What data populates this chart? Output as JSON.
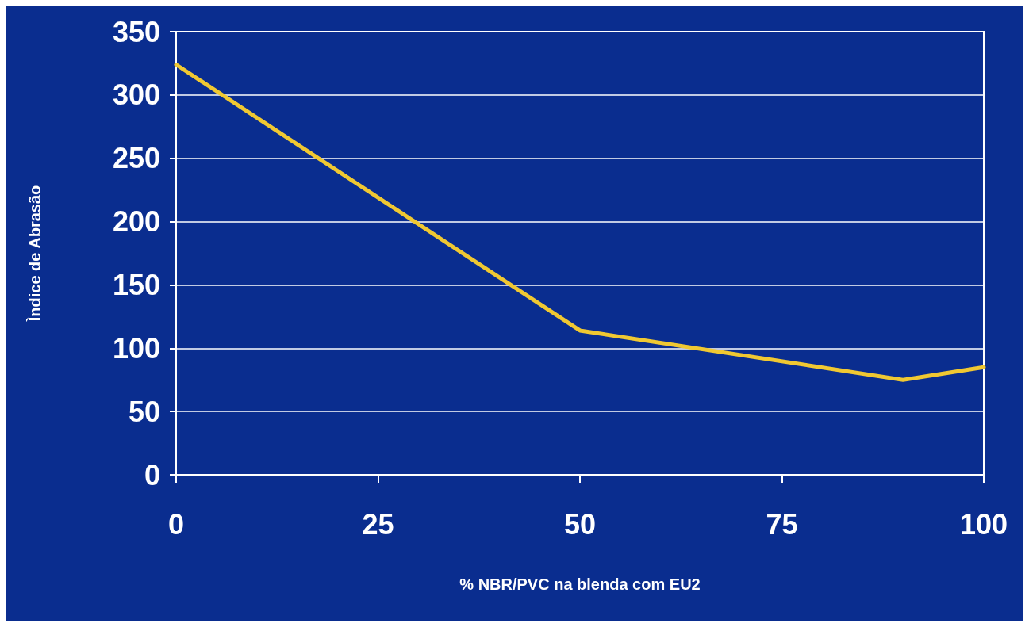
{
  "chart_data": {
    "type": "line",
    "xlabel": "% NBR/PVC na blenda com EU2",
    "ylabel": "Ìndice de Abrasão",
    "x": [
      0,
      50,
      90,
      100
    ],
    "series": [
      {
        "color": "#f0c832",
        "values": [
          324,
          114,
          75,
          85
        ]
      }
    ],
    "xlim": [
      0,
      100
    ],
    "xticks": [
      0,
      25,
      50,
      75,
      100
    ],
    "ylim": [
      0,
      350
    ],
    "yticks": [
      0,
      50,
      100,
      150,
      200,
      250,
      300,
      350
    ],
    "grid": "y",
    "marker": "none",
    "line_style": "solid"
  }
}
